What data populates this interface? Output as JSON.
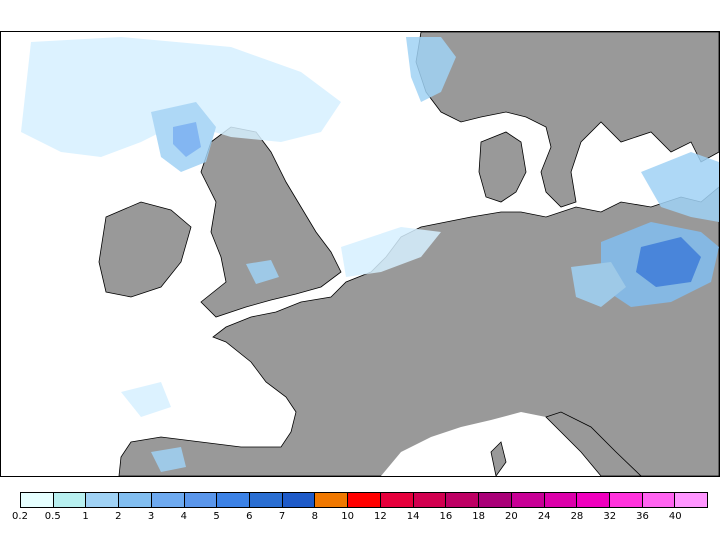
{
  "legend": {
    "labels": [
      "0.2",
      "0.5",
      "1",
      "2",
      "3",
      "4",
      "5",
      "6",
      "7",
      "8",
      "10",
      "12",
      "14",
      "16",
      "18",
      "20",
      "24",
      "28",
      "32",
      "36",
      "40"
    ],
    "colors": [
      "#e6ffff",
      "#b8f0f0",
      "#a0d2f5",
      "#82bef0",
      "#6eaaf0",
      "#5a96eb",
      "#3c82e6",
      "#2a6ed2",
      "#1e5ac8",
      "#f07800",
      "#ff0000",
      "#e6003c",
      "#d20050",
      "#be0064",
      "#aa0078",
      "#c80096",
      "#dc00aa",
      "#f000be",
      "#ff32dc",
      "#ff64f0",
      "#ff96ff"
    ]
  },
  "map": {
    "land_color": "#999999",
    "sea_color": "#ffffff",
    "border_color": "#000000"
  }
}
